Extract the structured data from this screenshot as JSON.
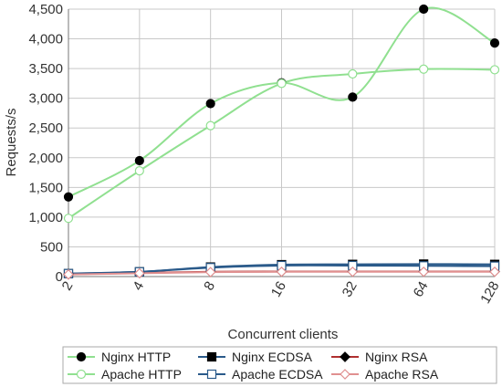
{
  "chart_data": {
    "type": "line",
    "xlabel": "Concurrent clients",
    "ylabel": "Requests/s",
    "x": [
      "2",
      "4",
      "8",
      "16",
      "32",
      "64",
      "128"
    ],
    "ylim": [
      0,
      4500
    ],
    "yticks": [
      0,
      500,
      1000,
      1500,
      2000,
      2500,
      3000,
      3500,
      4000,
      4500
    ],
    "ytick_labels": [
      "0",
      "500",
      "1,000",
      "1,500",
      "2,000",
      "2,500",
      "3,000",
      "3,500",
      "4,000",
      "4,500"
    ],
    "grid": true,
    "legend_position": "bottom",
    "series": [
      {
        "name": "Nginx HTTP",
        "color": "#90e090",
        "marker": "filled-circle",
        "marker_color": "#000000",
        "values": [
          1340,
          1950,
          2910,
          3260,
          3020,
          4500,
          3930
        ]
      },
      {
        "name": "Nginx ECDSA",
        "color": "#2a5a8a",
        "marker": "filled-square",
        "marker_color": "#000000",
        "values": [
          50,
          80,
          160,
          200,
          205,
          210,
          205
        ]
      },
      {
        "name": "Nginx RSA",
        "color": "#b03030",
        "marker": "filled-diamond",
        "marker_color": "#000000",
        "values": [
          40,
          60,
          80,
          85,
          85,
          85,
          85
        ]
      },
      {
        "name": "Apache HTTP",
        "color": "#90e090",
        "marker": "open-circle",
        "marker_color": "#90e090",
        "values": [
          980,
          1780,
          2540,
          3250,
          3410,
          3490,
          3480
        ]
      },
      {
        "name": "Apache ECDSA",
        "color": "#2a5a8a",
        "marker": "open-square",
        "marker_color": "#2a5a8a",
        "values": [
          50,
          80,
          150,
          185,
          185,
          180,
          175
        ]
      },
      {
        "name": "Apache RSA",
        "color": "#e09090",
        "marker": "open-diamond",
        "marker_color": "#e09090",
        "values": [
          35,
          55,
          75,
          80,
          80,
          80,
          80
        ]
      }
    ]
  }
}
